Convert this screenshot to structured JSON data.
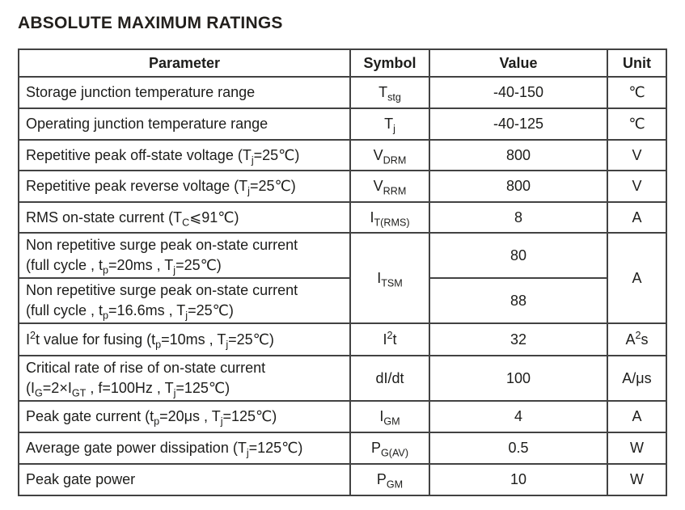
{
  "title": "ABSOLUTE MAXIMUM RATINGS",
  "table": {
    "headers": {
      "parameter": "Parameter",
      "symbol": "Symbol",
      "value": "Value",
      "unit": "Unit"
    },
    "rows": [
      {
        "parameter": "Storage junction temperature range",
        "symbol": "T_{stg}",
        "value": "-40-150",
        "unit": "℃"
      },
      {
        "parameter": "Operating junction temperature range",
        "symbol": "T_{j}",
        "value": "-40-125",
        "unit": "℃"
      },
      {
        "parameter": "Repetitive peak off-state voltage (T_{j}=25℃)",
        "symbol": "V_{DRM}",
        "value": "800",
        "unit": "V"
      },
      {
        "parameter": "Repetitive peak reverse voltage (T_{j}=25℃)",
        "symbol": "V_{RRM}",
        "value": "800",
        "unit": "V"
      },
      {
        "parameter": "RMS on-state current (T_{C}⩽91℃)",
        "symbol": "I_{T(RMS)}",
        "value": "8",
        "unit": "A"
      },
      {
        "parameter": "Non repetitive surge peak on-state current\n(full cycle , t_{p}=20ms , T_{j}=25℃)",
        "symbol": "I_{TSM}",
        "value": "80",
        "unit": "A"
      },
      {
        "parameter": "Non repetitive surge peak on-state current\n(full cycle , t_{p}=16.6ms , T_{j}=25℃)",
        "value": "88"
      },
      {
        "parameter": "I^{2}t value for fusing (t_{p}=10ms , T_{j}=25℃)",
        "symbol": "I^{2}t",
        "value": "32",
        "unit": "A^{2}s"
      },
      {
        "parameter": "Critical rate of rise of on-state current\n(I_{G}=2×I_{GT} , f=100Hz , T_{j}=125℃)",
        "symbol": "dI/dt",
        "value": "100",
        "unit": "A/μs"
      },
      {
        "parameter": "Peak gate current (t_{p}=20μs , T_{j}=125℃)",
        "symbol": "I_{GM}",
        "value": "4",
        "unit": "A"
      },
      {
        "parameter": "Average gate power dissipation (T_{j}=125℃)",
        "symbol": "P_{G(AV)}",
        "value": "0.5",
        "unit": "W"
      },
      {
        "parameter": "Peak gate power",
        "symbol": "P_{GM}",
        "value": "10",
        "unit": "W"
      }
    ]
  }
}
